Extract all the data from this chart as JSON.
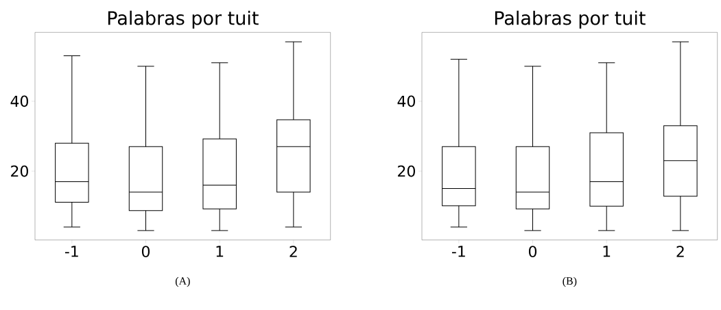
{
  "chart_data": [
    {
      "type": "box",
      "title": "Palabras por tuit",
      "categories": [
        "-1",
        "0",
        "1",
        "2"
      ],
      "boxes": [
        {
          "low": 4,
          "q1": 11.1,
          "median": 17,
          "q3": 28,
          "high": 53
        },
        {
          "low": 3,
          "q1": 8.7,
          "median": 14,
          "q3": 27,
          "high": 50
        },
        {
          "low": 3,
          "q1": 9.2,
          "median": 16,
          "q3": 29.2,
          "high": 51
        },
        {
          "low": 4,
          "q1": 14,
          "median": 27,
          "q3": 34.7,
          "high": 57
        }
      ],
      "ylim": [
        0.3,
        59.7
      ],
      "yticks": [
        20,
        40
      ],
      "annotations": [
        "(A)"
      ]
    },
    {
      "type": "box",
      "title": "Palabras por tuit",
      "categories": [
        "-1",
        "0",
        "1",
        "2"
      ],
      "boxes": [
        {
          "low": 4,
          "q1": 10.1,
          "median": 15,
          "q3": 27,
          "high": 52
        },
        {
          "low": 3,
          "q1": 9.2,
          "median": 14,
          "q3": 27,
          "high": 50
        },
        {
          "low": 3,
          "q1": 10,
          "median": 17,
          "q3": 31,
          "high": 51
        },
        {
          "low": 3,
          "q1": 12.8,
          "median": 23,
          "q3": 33,
          "high": 57
        }
      ],
      "ylim": [
        0.3,
        59.7
      ],
      "yticks": [
        20,
        40
      ],
      "annotations": [
        "(B)"
      ]
    }
  ]
}
